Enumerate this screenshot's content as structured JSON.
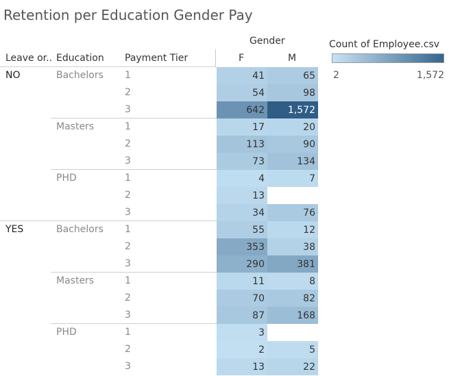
{
  "title": "Retention per Education Gender Pay",
  "headers": {
    "column_group": "Gender",
    "leave": "Leave or..",
    "education": "Education",
    "tier": "Payment Tier",
    "genders": [
      "F",
      "M"
    ]
  },
  "legend": {
    "title": "Count of Employee.csv",
    "min": "2",
    "max": "1,572",
    "color_low": "#c9e2f3",
    "color_high": "#35668f"
  },
  "colors": {
    "scale_low": "#c2dff2",
    "scale_high": "#2f5d86",
    "text_dark": "#333333",
    "text_light": "#ffffff"
  },
  "chart_data": {
    "type": "heatmap",
    "title": "Retention per Education Gender Pay",
    "columns": [
      "F",
      "M"
    ],
    "row_dimensions": [
      "Leave or..",
      "Education",
      "Payment Tier"
    ],
    "color_range": [
      2,
      1572
    ],
    "groups": [
      {
        "leave": "NO",
        "education": [
          {
            "name": "Bachelors",
            "rows": [
              {
                "tier": "1",
                "values": [
                  41,
                  65
                ],
                "labels": [
                  "41",
                  "65"
                ]
              },
              {
                "tier": "2",
                "values": [
                  54,
                  98
                ],
                "labels": [
                  "54",
                  "98"
                ]
              },
              {
                "tier": "3",
                "values": [
                  642,
                  1572
                ],
                "labels": [
                  "642",
                  "1,572"
                ]
              }
            ]
          },
          {
            "name": "Masters",
            "rows": [
              {
                "tier": "1",
                "values": [
                  17,
                  20
                ],
                "labels": [
                  "17",
                  "20"
                ]
              },
              {
                "tier": "2",
                "values": [
                  113,
                  90
                ],
                "labels": [
                  "113",
                  "90"
                ]
              },
              {
                "tier": "3",
                "values": [
                  73,
                  134
                ],
                "labels": [
                  "73",
                  "134"
                ]
              }
            ]
          },
          {
            "name": "PHD",
            "rows": [
              {
                "tier": "1",
                "values": [
                  4,
                  7
                ],
                "labels": [
                  "4",
                  "7"
                ]
              },
              {
                "tier": "2",
                "values": [
                  13,
                  null
                ],
                "labels": [
                  "13",
                  ""
                ]
              },
              {
                "tier": "3",
                "values": [
                  34,
                  76
                ],
                "labels": [
                  "34",
                  "76"
                ]
              }
            ]
          }
        ]
      },
      {
        "leave": "YES",
        "education": [
          {
            "name": "Bachelors",
            "rows": [
              {
                "tier": "1",
                "values": [
                  55,
                  12
                ],
                "labels": [
                  "55",
                  "12"
                ]
              },
              {
                "tier": "2",
                "values": [
                  353,
                  38
                ],
                "labels": [
                  "353",
                  "38"
                ]
              },
              {
                "tier": "3",
                "values": [
                  290,
                  381
                ],
                "labels": [
                  "290",
                  "381"
                ]
              }
            ]
          },
          {
            "name": "Masters",
            "rows": [
              {
                "tier": "1",
                "values": [
                  11,
                  8
                ],
                "labels": [
                  "11",
                  "8"
                ]
              },
              {
                "tier": "2",
                "values": [
                  70,
                  82
                ],
                "labels": [
                  "70",
                  "82"
                ]
              },
              {
                "tier": "3",
                "values": [
                  87,
                  168
                ],
                "labels": [
                  "87",
                  "168"
                ]
              }
            ]
          },
          {
            "name": "PHD",
            "rows": [
              {
                "tier": "1",
                "values": [
                  3,
                  null
                ],
                "labels": [
                  "3",
                  ""
                ]
              },
              {
                "tier": "2",
                "values": [
                  2,
                  5
                ],
                "labels": [
                  "2",
                  "5"
                ]
              },
              {
                "tier": "3",
                "values": [
                  13,
                  22
                ],
                "labels": [
                  "13",
                  "22"
                ]
              }
            ]
          }
        ]
      }
    ]
  }
}
